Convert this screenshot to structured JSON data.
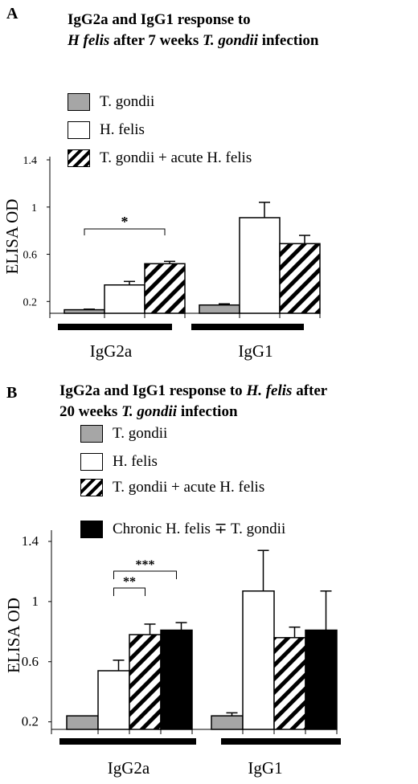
{
  "panels": [
    {
      "letter": "A",
      "title_parts": [
        {
          "text": "IgG2a and IgG1 response to",
          "italic": false,
          "br": true
        },
        {
          "text": "H felis",
          "italic": true
        },
        {
          "text": " after 7 weeks ",
          "italic": false
        },
        {
          "text": "T. gondii",
          "italic": true
        },
        {
          "text": " infection",
          "italic": false
        }
      ],
      "legend": [
        {
          "label": "T. gondii",
          "fill": "gray"
        },
        {
          "label": "H. felis",
          "fill": "white"
        },
        {
          "label": "T. gondii + acute H. felis",
          "fill": "hatch"
        }
      ]
    },
    {
      "letter": "B",
      "title_parts": [
        {
          "text": "IgG2a and  IgG1 response to ",
          "italic": false
        },
        {
          "text": "H. felis",
          "italic": true
        },
        {
          "text": " after",
          "italic": false,
          "br": true
        },
        {
          "text": "20 weeks  ",
          "italic": false
        },
        {
          "text": "T. gondii",
          "italic": true
        },
        {
          "text": " infection",
          "italic": false
        }
      ],
      "legend": [
        {
          "label": "T. gondii",
          "fill": "gray"
        },
        {
          "label": "H. felis",
          "fill": "white"
        },
        {
          "label": "T. gondii + acute H. felis",
          "fill": "hatch"
        },
        {
          "label": "Chronic H. felis ∓ T. gondii",
          "fill": "black"
        }
      ]
    }
  ],
  "colors": {
    "gray": "#a6a6a6",
    "white": "#ffffff",
    "black": "#000000"
  },
  "chart_data": [
    {
      "type": "bar",
      "ylabel": "ELISA OD",
      "ylim": [
        0.1,
        1.4
      ],
      "yticks": [
        0.2,
        0.6,
        1,
        1.4
      ],
      "ytick_labels": [
        "0.2",
        "0.6",
        "1",
        "1.4"
      ],
      "categories": [
        "IgG2a",
        "IgG1"
      ],
      "series": [
        {
          "name": "T. gondii",
          "fill": "gray",
          "values": [
            0.13,
            0.17
          ],
          "errors": [
            0.005,
            0.01
          ]
        },
        {
          "name": "H. felis",
          "fill": "white",
          "values": [
            0.34,
            0.91
          ],
          "errors": [
            0.03,
            0.13
          ]
        },
        {
          "name": "T. gondii + acute H. felis",
          "fill": "hatch",
          "values": [
            0.52,
            0.69
          ],
          "errors": [
            0.02,
            0.07
          ]
        }
      ],
      "significance": [
        {
          "category": "IgG2a",
          "from": 0,
          "to": 2,
          "label": "*"
        }
      ]
    },
    {
      "type": "bar",
      "ylabel": "ELISA OD",
      "ylim": [
        0.15,
        1.4
      ],
      "yticks": [
        0.2,
        0.6,
        1,
        1.4
      ],
      "ytick_labels": [
        "0.2",
        "0.6",
        "1",
        "1.4"
      ],
      "categories": [
        "IgG2a",
        "IgG1"
      ],
      "series": [
        {
          "name": "T. gondii",
          "fill": "gray",
          "values": [
            0.24,
            0.24
          ],
          "errors": [
            0.0,
            0.02
          ]
        },
        {
          "name": "H. felis",
          "fill": "white",
          "values": [
            0.54,
            1.07
          ],
          "errors": [
            0.07,
            0.27
          ]
        },
        {
          "name": "T. gondii + acute H. felis",
          "fill": "hatch",
          "values": [
            0.78,
            0.76
          ],
          "errors": [
            0.07,
            0.07
          ]
        },
        {
          "name": "Chronic H. felis ∓ T. gondii",
          "fill": "black",
          "values": [
            0.81,
            0.81
          ],
          "errors": [
            0.05,
            0.26
          ]
        }
      ],
      "significance": [
        {
          "category": "IgG2a",
          "from": 1,
          "to": 3,
          "label": "***"
        },
        {
          "category": "IgG2a",
          "from": 1,
          "to": 2,
          "label": "**"
        }
      ]
    }
  ]
}
